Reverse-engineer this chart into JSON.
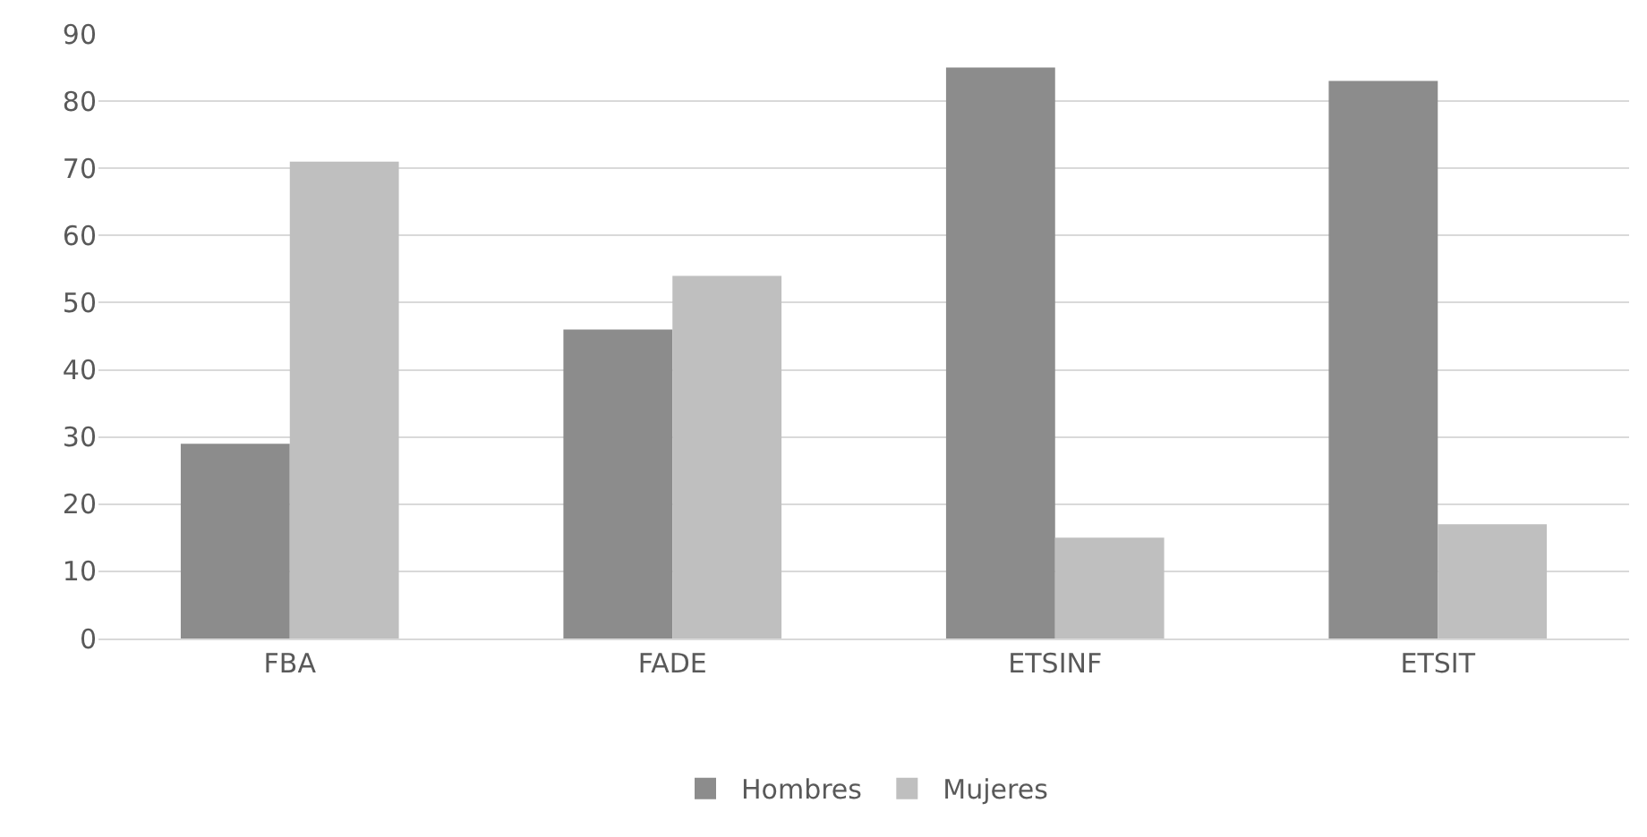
{
  "chart_data": {
    "type": "bar",
    "categories": [
      "FBA",
      "FADE",
      "ETSINF",
      "ETSIT"
    ],
    "series": [
      {
        "name": "Hombres",
        "color": "#8c8c8c",
        "values": [
          29,
          46,
          85,
          83
        ]
      },
      {
        "name": "Mujeres",
        "color": "#bfbfbf",
        "values": [
          71,
          54,
          15,
          17
        ]
      }
    ],
    "ylim": [
      0,
      90
    ],
    "yticks": [
      0,
      10,
      20,
      30,
      40,
      50,
      60,
      70,
      80,
      90
    ],
    "grid": "y",
    "legend": "bottom"
  }
}
